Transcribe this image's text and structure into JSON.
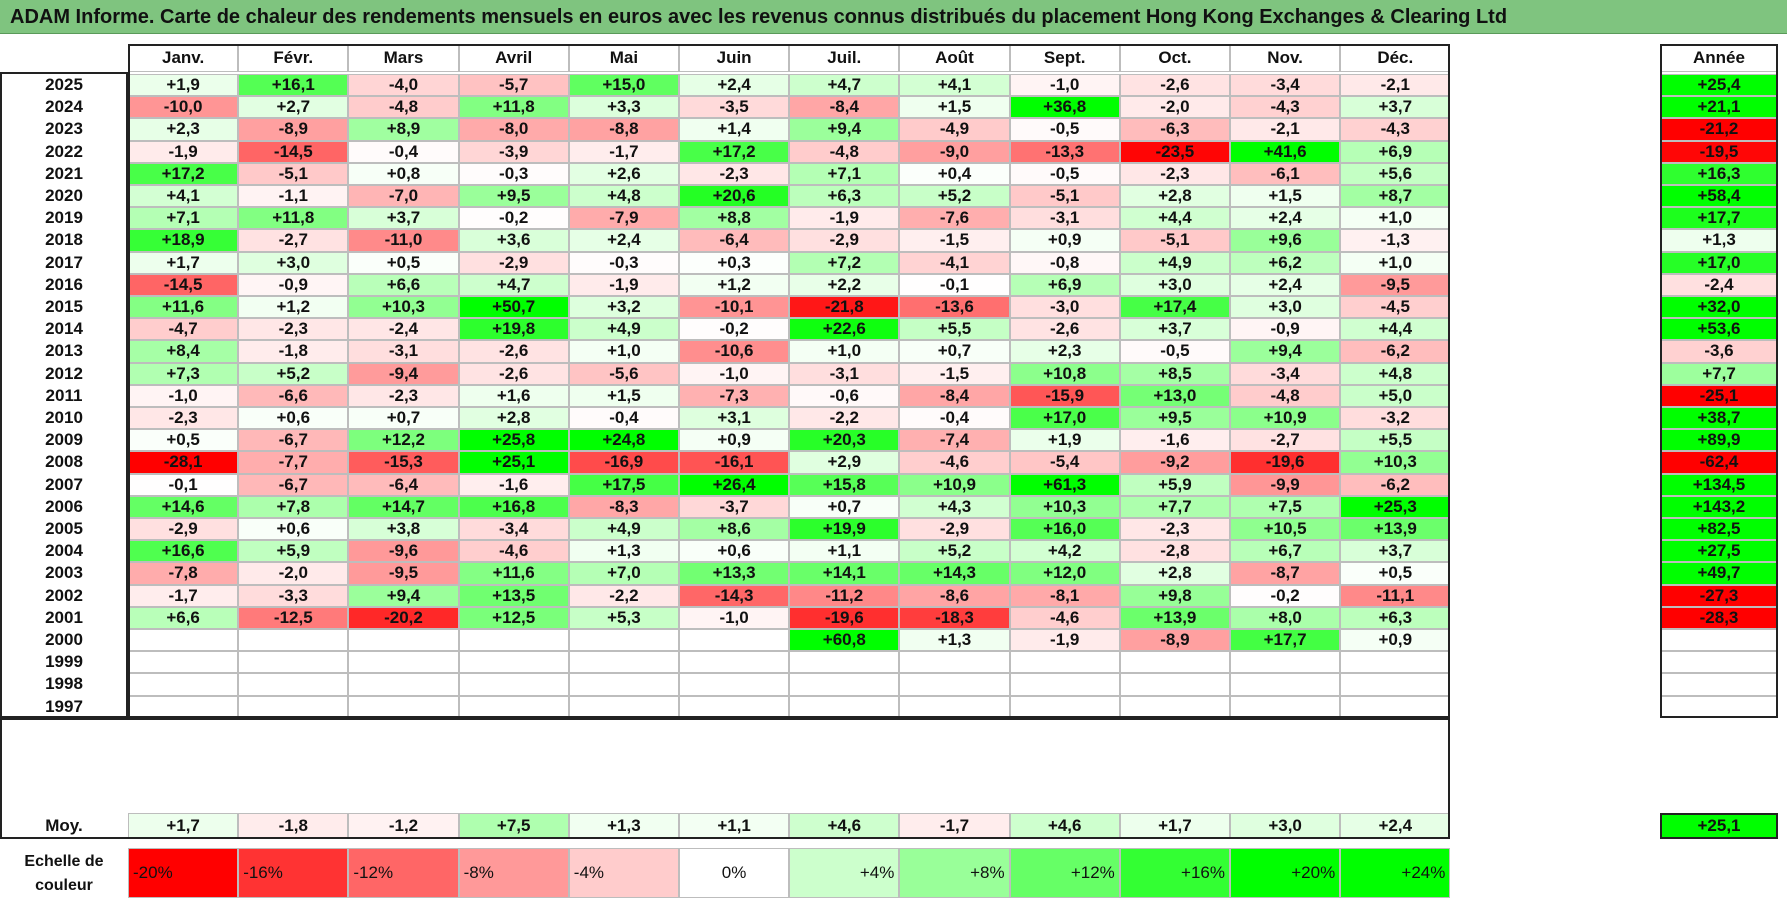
{
  "title": "ADAM Informe. Carte de chaleur des rendements mensuels en euros avec les revenus connus distribués du placement Hong Kong Exchanges & Clearing Ltd",
  "year_column_header": "Année",
  "average_label": "Moy.",
  "scale_label": "Echelle de couleur",
  "colors": {
    "negative_max": "#ff0000",
    "positive_max": "#00ff00",
    "title_bar": "#7fc47f"
  },
  "chart_data": {
    "type": "heatmap",
    "title": "ADAM Informe. Carte de chaleur des rendements mensuels en euros avec les revenus connus distribués du placement Hong Kong Exchanges & Clearing Ltd",
    "months": [
      "Janv.",
      "Févr.",
      "Mars",
      "Avril",
      "Mai",
      "Juin",
      "Juil.",
      "Août",
      "Sept.",
      "Oct.",
      "Nov.",
      "Déc."
    ],
    "years": [
      "2025",
      "2024",
      "2023",
      "2022",
      "2021",
      "2020",
      "2019",
      "2018",
      "2017",
      "2016",
      "2015",
      "2014",
      "2013",
      "2012",
      "2011",
      "2010",
      "2009",
      "2008",
      "2007",
      "2006",
      "2005",
      "2004",
      "2003",
      "2002",
      "2001",
      "2000",
      "1999",
      "1998",
      "1997"
    ],
    "values": [
      [
        "+1,9",
        "+16,1",
        "-4,0",
        "-5,7",
        "+15,0",
        "+2,4",
        "+4,7",
        "+4,1",
        "-1,0",
        "-2,6",
        "-3,4",
        "-2,1"
      ],
      [
        "-10,0",
        "+2,7",
        "-4,8",
        "+11,8",
        "+3,3",
        "-3,5",
        "-8,4",
        "+1,5",
        "+36,8",
        "-2,0",
        "-4,3",
        "+3,7"
      ],
      [
        "+2,3",
        "-8,9",
        "+8,9",
        "-8,0",
        "-8,8",
        "+1,4",
        "+9,4",
        "-4,9",
        "-0,5",
        "-6,3",
        "-2,1",
        "-4,3"
      ],
      [
        "-1,9",
        "-14,5",
        "-0,4",
        "-3,9",
        "-1,7",
        "+17,2",
        "-4,8",
        "-9,0",
        "-13,3",
        "-23,5",
        "+41,6",
        "+6,9"
      ],
      [
        "+17,2",
        "-5,1",
        "+0,8",
        "-0,3",
        "+2,6",
        "-2,3",
        "+7,1",
        "+0,4",
        "-0,5",
        "-2,3",
        "-6,1",
        "+5,6"
      ],
      [
        "+4,1",
        "-1,1",
        "-7,0",
        "+9,5",
        "+4,8",
        "+20,6",
        "+6,3",
        "+5,2",
        "-5,1",
        "+2,8",
        "+1,5",
        "+8,7"
      ],
      [
        "+7,1",
        "+11,8",
        "+3,7",
        "-0,2",
        "-7,9",
        "+8,8",
        "-1,9",
        "-7,6",
        "-3,1",
        "+4,4",
        "+2,4",
        "+1,0"
      ],
      [
        "+18,9",
        "-2,7",
        "-11,0",
        "+3,6",
        "+2,4",
        "-6,4",
        "-2,9",
        "-1,5",
        "+0,9",
        "-5,1",
        "+9,6",
        "-1,3"
      ],
      [
        "+1,7",
        "+3,0",
        "+0,5",
        "-2,9",
        "-0,3",
        "+0,3",
        "+7,2",
        "-4,1",
        "-0,8",
        "+4,9",
        "+6,2",
        "+1,0"
      ],
      [
        "-14,5",
        "-0,9",
        "+6,6",
        "+4,7",
        "-1,9",
        "+1,2",
        "+2,2",
        "-0,1",
        "+6,9",
        "+3,0",
        "+2,4",
        "-9,5"
      ],
      [
        "+11,6",
        "+1,2",
        "+10,3",
        "+50,7",
        "+3,2",
        "-10,1",
        "-21,8",
        "-13,6",
        "-3,0",
        "+17,4",
        "+3,0",
        "-4,5"
      ],
      [
        "-4,7",
        "-2,3",
        "-2,4",
        "+19,8",
        "+4,9",
        "-0,2",
        "+22,6",
        "+5,5",
        "-2,6",
        "+3,7",
        "-0,9",
        "+4,4"
      ],
      [
        "+8,4",
        "-1,8",
        "-3,1",
        "-2,6",
        "+1,0",
        "-10,6",
        "+1,0",
        "+0,7",
        "+2,3",
        "-0,5",
        "+9,4",
        "-6,2"
      ],
      [
        "+7,3",
        "+5,2",
        "-9,4",
        "-2,6",
        "-5,6",
        "-1,0",
        "-3,1",
        "-1,5",
        "+10,8",
        "+8,5",
        "-3,4",
        "+4,8"
      ],
      [
        "-1,0",
        "-6,6",
        "-2,3",
        "+1,6",
        "+1,5",
        "-7,3",
        "-0,6",
        "-8,4",
        "-15,9",
        "+13,0",
        "-4,8",
        "+5,0"
      ],
      [
        "-2,3",
        "+0,6",
        "+0,7",
        "+2,8",
        "-0,4",
        "+3,1",
        "-2,2",
        "-0,4",
        "+17,0",
        "+9,5",
        "+10,9",
        "-3,2"
      ],
      [
        "+0,5",
        "-6,7",
        "+12,2",
        "+25,8",
        "+24,8",
        "+0,9",
        "+20,3",
        "-7,4",
        "+1,9",
        "-1,6",
        "-2,7",
        "+5,5"
      ],
      [
        "-28,1",
        "-7,7",
        "-15,3",
        "+25,1",
        "-16,9",
        "-16,1",
        "+2,9",
        "-4,6",
        "-5,4",
        "-9,2",
        "-19,6",
        "+10,3"
      ],
      [
        "-0,1",
        "-6,7",
        "-6,4",
        "-1,6",
        "+17,5",
        "+26,4",
        "+15,8",
        "+10,9",
        "+61,3",
        "+5,9",
        "-9,9",
        "-6,2"
      ],
      [
        "+14,6",
        "+7,8",
        "+14,7",
        "+16,8",
        "-8,3",
        "-3,7",
        "+0,7",
        "+4,3",
        "+10,3",
        "+7,7",
        "+7,5",
        "+25,3"
      ],
      [
        "-2,9",
        "+0,6",
        "+3,8",
        "-3,4",
        "+4,9",
        "+8,6",
        "+19,9",
        "-2,9",
        "+16,0",
        "-2,3",
        "+10,5",
        "+13,9"
      ],
      [
        "+16,6",
        "+5,9",
        "-9,6",
        "-4,6",
        "+1,3",
        "+0,6",
        "+1,1",
        "+5,2",
        "+4,2",
        "-2,8",
        "+6,7",
        "+3,7"
      ],
      [
        "-7,8",
        "-2,0",
        "-9,5",
        "+11,6",
        "+7,0",
        "+13,3",
        "+14,1",
        "+14,3",
        "+12,0",
        "+2,8",
        "-8,7",
        "+0,5"
      ],
      [
        "-1,7",
        "-3,3",
        "+9,4",
        "+13,5",
        "-2,2",
        "-14,3",
        "-11,2",
        "-8,6",
        "-8,1",
        "+9,8",
        "-0,2",
        "-11,1"
      ],
      [
        "+6,6",
        "-12,5",
        "-20,2",
        "+12,5",
        "+5,3",
        "-1,0",
        "-19,6",
        "-18,3",
        "-4,6",
        "+13,9",
        "+8,0",
        "+6,3"
      ],
      [
        "",
        "",
        "",
        "",
        "",
        "",
        "+60,8",
        "+1,3",
        "-1,9",
        "-8,9",
        "+17,7",
        "+0,9"
      ],
      [
        "",
        "",
        "",
        "",
        "",
        "",
        "",
        "",
        "",
        "",
        "",
        ""
      ],
      [
        "",
        "",
        "",
        "",
        "",
        "",
        "",
        "",
        "",
        "",
        "",
        ""
      ],
      [
        "",
        "",
        "",
        "",
        "",
        "",
        "",
        "",
        "",
        "",
        "",
        ""
      ]
    ],
    "annual": [
      "+25,4",
      "+21,1",
      "-21,2",
      "-19,5",
      "+16,3",
      "+58,4",
      "+17,7",
      "+1,3",
      "+17,0",
      "-2,4",
      "+32,0",
      "+53,6",
      "-3,6",
      "+7,7",
      "-25,1",
      "+38,7",
      "+89,9",
      "-62,4",
      "+134,5",
      "+143,2",
      "+82,5",
      "+27,5",
      "+49,7",
      "-27,3",
      "-28,3",
      "",
      "",
      "",
      ""
    ],
    "averages": [
      "+1,7",
      "-1,8",
      "-1,2",
      "+7,5",
      "+1,3",
      "+1,1",
      "+4,6",
      "-1,7",
      "+4,6",
      "+1,7",
      "+3,0",
      "+2,4"
    ],
    "average_annual": "+25,1",
    "color_scale": {
      "labels": [
        "-20%",
        "-16%",
        "-12%",
        "-8%",
        "-4%",
        "0%",
        "+4%",
        "+8%",
        "+12%",
        "+16%",
        "+20%",
        "+24%"
      ],
      "values": [
        -20,
        -16,
        -12,
        -8,
        -4,
        0,
        4,
        8,
        12,
        16,
        20,
        24
      ]
    }
  }
}
